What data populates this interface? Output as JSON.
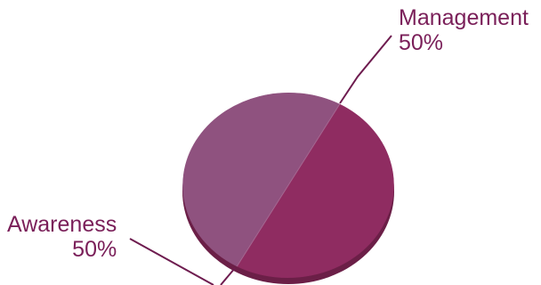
{
  "chart_data": {
    "type": "pie",
    "style": "3d-tilted",
    "title": "",
    "slices": [
      {
        "label": "Management",
        "value": 50,
        "value_label": "50%",
        "color": "#8f2c61"
      },
      {
        "label": "Awareness",
        "value": 50,
        "value_label": "50%",
        "color": "#8f527f"
      }
    ],
    "label_color": "#7a1f59",
    "leader_line_color": "#6e1c4f",
    "side_color": "#6b1f47",
    "legend": "none"
  }
}
